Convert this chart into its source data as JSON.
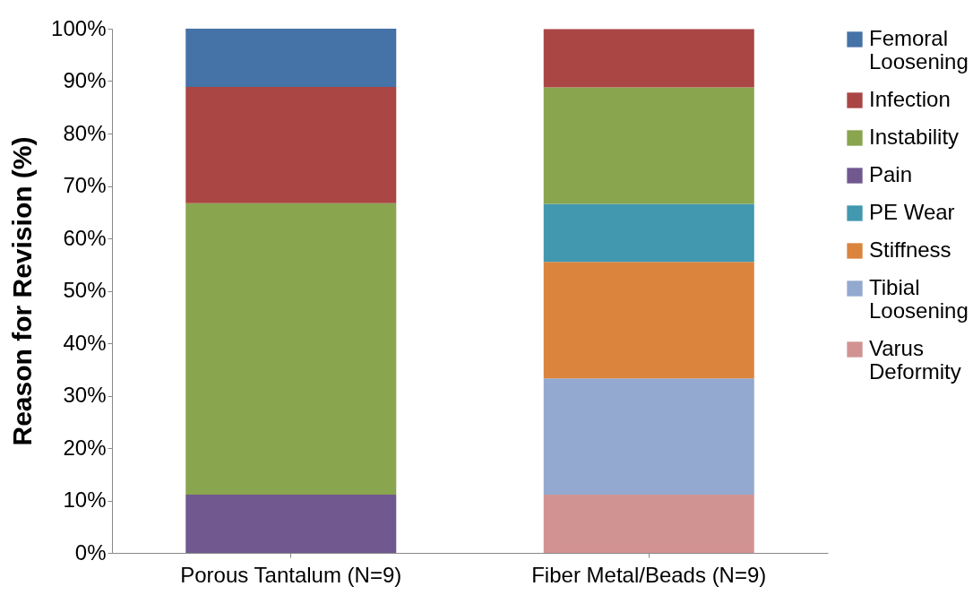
{
  "chart_data": {
    "type": "bar",
    "stacked": true,
    "ylabel": "Reason for Revision (%)",
    "categories": [
      "Porous Tantalum (N=9)",
      "Fiber Metal/Beads (N=9)"
    ],
    "series": [
      {
        "name": "Varus Deformity",
        "color": "#d19392",
        "values": [
          null,
          11.1
        ]
      },
      {
        "name": "Tibial Loosening",
        "color": "#93a9cf",
        "values": [
          null,
          22.2
        ]
      },
      {
        "name": "Stiffness",
        "color": "#db843d",
        "values": [
          null,
          22.2
        ]
      },
      {
        "name": "PE Wear",
        "color": "#4198af",
        "values": [
          null,
          11.1
        ]
      },
      {
        "name": "Pain",
        "color": "#71588f",
        "values": [
          11.1,
          null
        ]
      },
      {
        "name": "Instability",
        "color": "#89a54e",
        "values": [
          55.6,
          22.2
        ]
      },
      {
        "name": "Infection",
        "color": "#aa4644",
        "values": [
          22.2,
          11.1
        ]
      },
      {
        "name": "Femoral Loosening",
        "color": "#4572a7",
        "values": [
          11.1,
          null
        ]
      }
    ],
    "ylim": [
      0,
      100
    ],
    "yticks": [
      {
        "value": 0,
        "label": "0%"
      },
      {
        "value": 10,
        "label": "10%"
      },
      {
        "value": 20,
        "label": "20%"
      },
      {
        "value": 30,
        "label": "30%"
      },
      {
        "value": 40,
        "label": "40%"
      },
      {
        "value": 50,
        "label": "50%"
      },
      {
        "value": 60,
        "label": "60%"
      },
      {
        "value": 70,
        "label": "70%"
      },
      {
        "value": 80,
        "label": "80%"
      },
      {
        "value": 90,
        "label": "90%"
      },
      {
        "value": 100,
        "label": "100%"
      }
    ],
    "grid": false,
    "legend": "right"
  }
}
